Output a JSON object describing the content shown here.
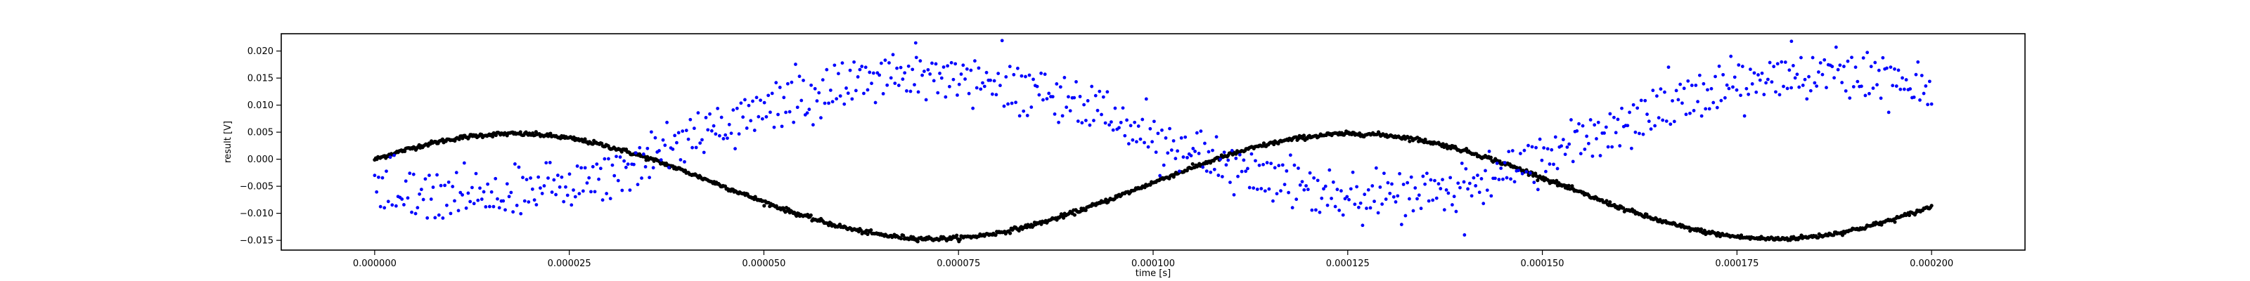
{
  "chart_data": {
    "type": "scatter",
    "title": "",
    "xlabel": "time [s]",
    "ylabel": "result [V]",
    "xlim": [
      -1.2e-05,
      0.000212
    ],
    "ylim": [
      -0.0168,
      0.0232
    ],
    "grid": false,
    "legend": "none",
    "xticks": [
      0.0,
      2.5e-05,
      5e-05,
      7.5e-05,
      0.0001,
      0.000125,
      0.00015,
      0.000175,
      0.0002
    ],
    "xtick_labels": [
      "0.000000",
      "0.000025",
      "0.000050",
      "0.000075",
      "0.000100",
      "0.000125",
      "0.000150",
      "0.000175",
      "0.000200"
    ],
    "yticks": [
      -0.015,
      -0.01,
      -0.005,
      0.0,
      0.005,
      0.01,
      0.015,
      0.02
    ],
    "ytick_labels": [
      "−0.015",
      "−0.010",
      "−0.005",
      "0.000",
      "0.005",
      "0.010",
      "0.015",
      "0.020"
    ],
    "series": [
      {
        "color": "#0000ff",
        "marker": "dot",
        "model": "two interleaved noisy sinusoids",
        "x_range": [
          0.0,
          0.0002
        ],
        "n_points": 800,
        "mean": 0.0045,
        "amplitude": 0.0112,
        "period": 0.000115,
        "peak_at": 7.1e-05,
        "band_offsets": [
          0.0025,
          -0.0025
        ],
        "noise": 0.0016,
        "outliers": [
          {
            "x": 0.00014,
            "y": -0.014
          },
          {
            "x": 6.95e-05,
            "y": 0.0215
          },
          {
            "x": 0.000182,
            "y": 0.0218
          }
        ]
      },
      {
        "color": "#000000",
        "marker": "dense-dot line",
        "model": "sinusoid",
        "x_range": [
          0.0,
          0.0002
        ],
        "n_points": 1400,
        "mean": -0.005,
        "amplitude": 0.0097,
        "period": 0.000108,
        "peak_at": 1.78e-05,
        "start_value": 0.0003,
        "end_value": -0.0113,
        "noise": 0.0002
      }
    ]
  }
}
